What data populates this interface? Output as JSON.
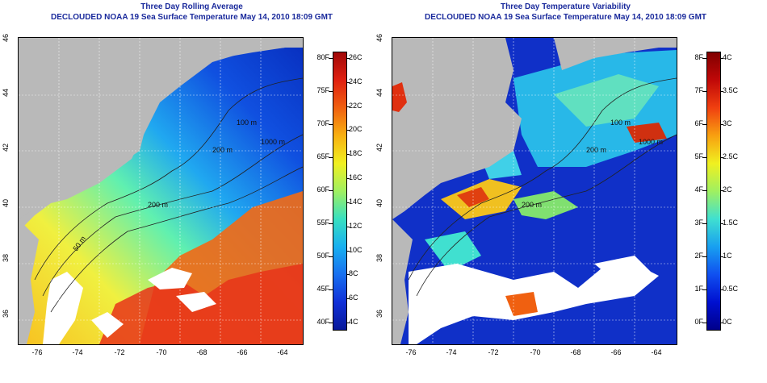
{
  "left_panel": {
    "title": "Three Day Rolling Average",
    "subtitle": "DECLOUDED NOAA 19 Sea Surface Temperature May 14, 2010 18:09 GMT",
    "colorbar_f": [
      "80F",
      "75F",
      "70F",
      "65F",
      "60F",
      "55F",
      "50F",
      "45F",
      "40F"
    ],
    "colorbar_c": [
      "26C",
      "24C",
      "22C",
      "20C",
      "18C",
      "16C",
      "14C",
      "12C",
      "10C",
      "8C",
      "6C",
      "4C"
    ],
    "contour_labels": [
      "100 m",
      "200 m",
      "1000 m",
      "50 m",
      "200 m"
    ],
    "ramp": [
      "#08189a",
      "#1030d8",
      "#1870f0",
      "#18b0f0",
      "#38e0c0",
      "#a0f060",
      "#f0f020",
      "#f8b010",
      "#f06010",
      "#e02010",
      "#a00808"
    ]
  },
  "right_panel": {
    "title": "Three Day Temperature Variability",
    "subtitle": "DECLOUDED NOAA 19 Sea Surface Temperature May 14, 2010 18:09 GMT",
    "colorbar_f": [
      "8F",
      "7F",
      "6F",
      "5F",
      "4F",
      "3F",
      "2F",
      "1F",
      "0F"
    ],
    "colorbar_c": [
      "4C",
      "3.5C",
      "3C",
      "2.5C",
      "2C",
      "1.5C",
      "1C",
      "0.5C",
      "0C"
    ],
    "contour_labels": [
      "100 m",
      "1000 m",
      "200 m",
      "200 m"
    ],
    "ramp": [
      "#00008a",
      "#0010d0",
      "#1050f0",
      "#18a0f0",
      "#40e0d0",
      "#a0f060",
      "#f0f020",
      "#f8a010",
      "#f04010",
      "#c00808",
      "#800000"
    ]
  },
  "axes": {
    "lat_ticks": [
      "36",
      "38",
      "40",
      "42",
      "44",
      "46"
    ],
    "lon_ticks": [
      "-76",
      "-74",
      "-72",
      "-70",
      "-68",
      "-66",
      "-64"
    ]
  }
}
